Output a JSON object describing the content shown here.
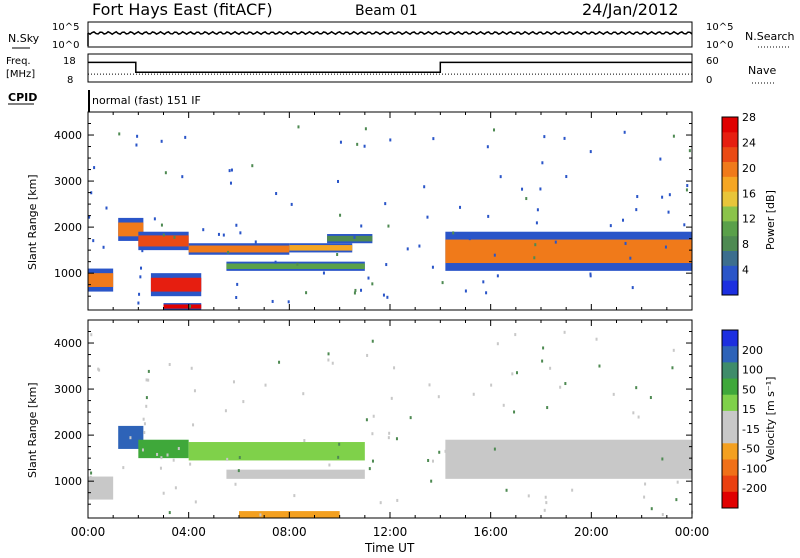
{
  "header": {
    "station": "Fort Hays East (fitACF)",
    "beam": "Beam 01",
    "date": "24/Jan/2012"
  },
  "noise_panel": {
    "left_label": "N.Sky",
    "right_label": "N.Search",
    "left_ticks": [
      "10^5",
      "10^0"
    ],
    "right_ticks": [
      "10^5",
      "10^0"
    ]
  },
  "freq_panel": {
    "left_label_1": "Freq.",
    "left_label_2": "[MHz]",
    "right_label": "Nave",
    "left_ticks": [
      "18",
      "8"
    ],
    "right_ticks": [
      "60",
      "0"
    ],
    "freq_series_hours": [
      0,
      1.9,
      1.9,
      14.0,
      14.0,
      24
    ],
    "freq_series_mhz": [
      15.0,
      15.0,
      11.5,
      11.5,
      15.0,
      15.0
    ],
    "nave_level": 0.28
  },
  "cpid": {
    "label": "CPID",
    "mode": "normal (fast) 151 IF"
  },
  "power_panel": {
    "ylabel": "Slant Range [km]",
    "yticks": [
      "1000",
      "2000",
      "3000",
      "4000"
    ],
    "colorbar_label": "Power [dB]",
    "colorbar_ticks": [
      "4",
      "8",
      "12",
      "16",
      "20",
      "24",
      "28"
    ],
    "colorbar_colors": [
      "#1c2fe0",
      "#2a55c8",
      "#3c6e8e",
      "#4e8a52",
      "#5aa04a",
      "#8bc34a",
      "#e8c53a",
      "#f5a623",
      "#f07a1a",
      "#ea4a14",
      "#e61e10",
      "#e00000"
    ]
  },
  "velocity_panel": {
    "ylabel": "Slant Range [km]",
    "yticks": [
      "1000",
      "2000",
      "3000",
      "4000"
    ],
    "colorbar_label": "Velocity [m s⁻¹]",
    "colorbar_ticks": [
      "200",
      "100",
      "50",
      "15",
      "-15",
      "-50",
      "-100",
      "-200"
    ],
    "colorbar_colors": [
      "#1c2fe0",
      "#2e63b8",
      "#3f8c6a",
      "#3fa83a",
      "#7fd14a",
      "#c8c8c8",
      "#c8c8c8",
      "#f3a020",
      "#f07018",
      "#ea4010",
      "#e00000"
    ]
  },
  "x_axis": {
    "label": "Time UT",
    "ticks": [
      "00:00",
      "04:00",
      "08:00",
      "12:00",
      "16:00",
      "20:00",
      "00:00"
    ]
  },
  "chart_data": {
    "type": "heatmap",
    "title": "Fort Hays East (fitACF)",
    "x_unit": "hours UT",
    "xlim": [
      0,
      24
    ],
    "ylim": [
      200,
      4500
    ],
    "xlabel": "Time UT",
    "ylabel": "Slant Range [km]",
    "power_bands": [
      {
        "t0": 0.0,
        "t1": 1.0,
        "r0": 600,
        "r1": 1100,
        "value": 22
      },
      {
        "t0": 1.2,
        "t1": 2.2,
        "r0": 1700,
        "r1": 2200,
        "value": 20
      },
      {
        "t0": 2.0,
        "t1": 4.0,
        "r0": 1500,
        "r1": 1900,
        "value": 24
      },
      {
        "t0": 4.0,
        "t1": 8.0,
        "r0": 1400,
        "r1": 1650,
        "value": 22
      },
      {
        "t0": 8.0,
        "t1": 10.5,
        "r0": 1450,
        "r1": 1650,
        "value": 18
      },
      {
        "t0": 9.5,
        "t1": 11.3,
        "r0": 1650,
        "r1": 1850,
        "value": 8
      },
      {
        "t0": 5.5,
        "t1": 11.0,
        "r0": 1050,
        "r1": 1250,
        "value": 10
      },
      {
        "t0": 2.5,
        "t1": 4.5,
        "r0": 500,
        "r1": 1000,
        "value": 26
      },
      {
        "t0": 3.0,
        "t1": 4.5,
        "r0": 200,
        "r1": 350,
        "value": 28
      },
      {
        "t0": 14.2,
        "t1": 24.0,
        "r0": 1050,
        "r1": 1900,
        "value": 20
      }
    ],
    "velocity_bands": [
      {
        "t0": 0.0,
        "t1": 1.0,
        "r0": 600,
        "r1": 1100,
        "value": 0
      },
      {
        "t0": 1.2,
        "t1": 2.2,
        "r0": 1700,
        "r1": 2200,
        "value": 150
      },
      {
        "t0": 2.0,
        "t1": 4.0,
        "r0": 1500,
        "r1": 1900,
        "value": 40
      },
      {
        "t0": 4.0,
        "t1": 11.0,
        "r0": 1450,
        "r1": 1850,
        "value": 30
      },
      {
        "t0": 5.5,
        "t1": 11.0,
        "r0": 1050,
        "r1": 1250,
        "value": 0
      },
      {
        "t0": 6.0,
        "t1": 10.0,
        "r0": 200,
        "r1": 350,
        "value": -40
      },
      {
        "t0": 14.2,
        "t1": 24.0,
        "r0": 1050,
        "r1": 1900,
        "value": 0
      }
    ]
  }
}
